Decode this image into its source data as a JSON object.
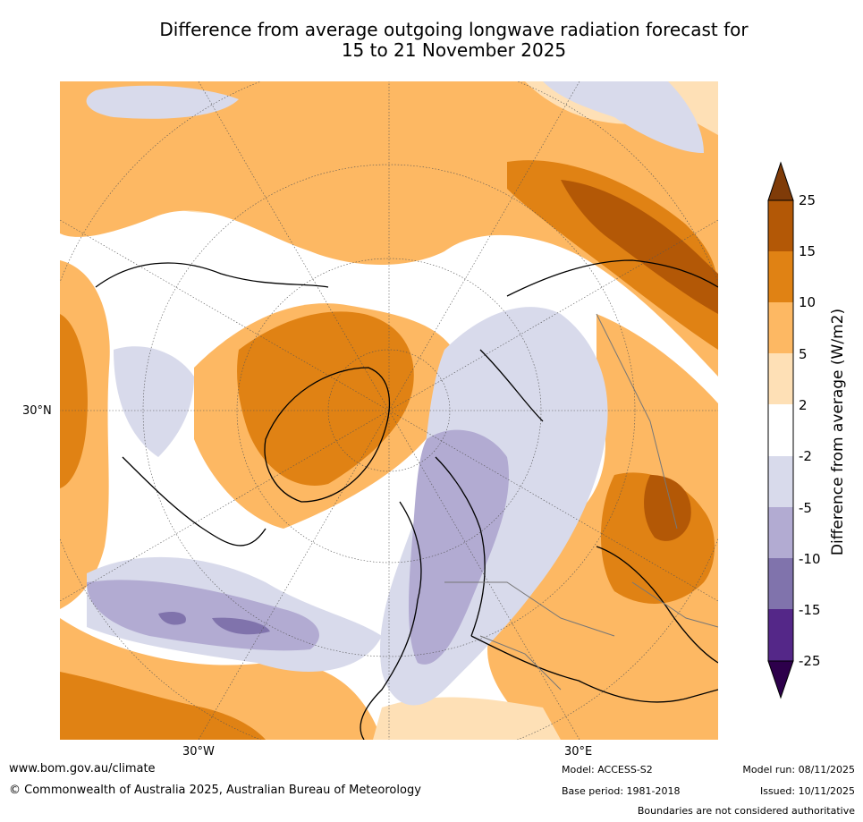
{
  "title": {
    "line1": "Difference from average outgoing longwave radiation forecast for",
    "line2": "15 to 21 November 2025"
  },
  "map": {
    "projection": "north-polar-stereographic",
    "labels": {
      "lat_30n": "30°N",
      "lon_30w": "30°W",
      "lon_30e": "30°E"
    }
  },
  "colorbar": {
    "title": "Difference from average (W/m2)",
    "ticks": [
      "25",
      "15",
      "10",
      "5",
      "2",
      "-2",
      "-5",
      "-10",
      "-15",
      "-25"
    ],
    "colors": {
      "extend_high": "#7f3b08",
      "b15_25": "#b35806",
      "b10_15": "#e08214",
      "b5_10": "#fdb863",
      "b2_5": "#fee0b6",
      "neutral": "#ffffff",
      "m2_m5": "#d8daeb",
      "m5_m10": "#b2abd2",
      "m10_m15": "#8073ac",
      "m15_m25": "#542788",
      "extend_low": "#2d004b"
    }
  },
  "footer": {
    "website": "www.bom.gov.au/climate",
    "copyright": "© Commonwealth of Australia 2025, Australian Bureau of Meteorology",
    "model": "Model: ACCESS-S2",
    "base_period": "Base period: 1981-2018",
    "model_run": "Model run: 08/11/2025",
    "issued": "Issued: 10/11/2025",
    "disclaimer": "Boundaries are not considered authoritative"
  }
}
